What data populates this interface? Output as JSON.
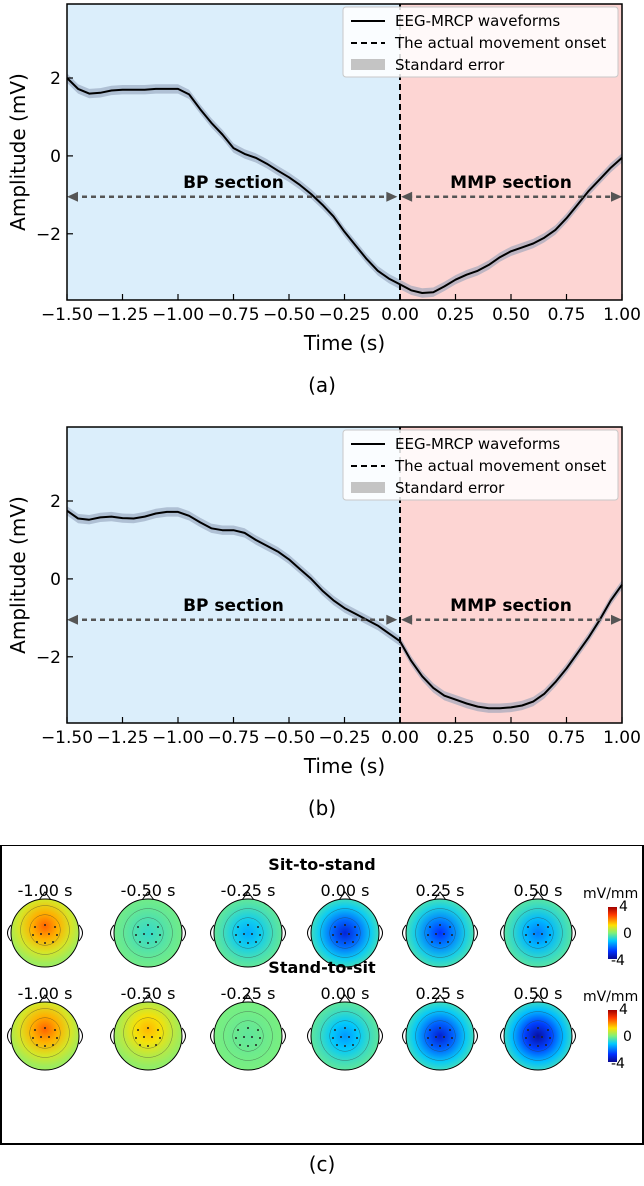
{
  "chart_data": [
    {
      "type": "line",
      "caption": "(a)",
      "xlabel": "Time (s)",
      "ylabel": "Amplitude (mV)",
      "xlim": [
        -1.5,
        1.0
      ],
      "ylim": [
        -3.7,
        3.9
      ],
      "xticks": [
        "−1.50",
        "−1.25",
        "−1.00",
        "−0.75",
        "−0.50",
        "−0.25",
        "0.00",
        "0.25",
        "0.50",
        "0.75",
        "1.00"
      ],
      "yticks": [
        "2",
        "0",
        "−2"
      ],
      "legend_position": "top-right",
      "legend": [
        "EEG-MRCP waveforms",
        "The actual movement onset",
        "Standard error"
      ],
      "onset_x": 0.0,
      "regions": [
        {
          "label": "BP section",
          "x": [
            -1.5,
            0.0
          ],
          "color": "#dbeefb"
        },
        {
          "label": "MMP section",
          "x": [
            0.0,
            1.0
          ],
          "color": "#fdd5d3"
        }
      ],
      "arrow_y": -1.05,
      "series": [
        {
          "name": "EEG-MRCP waveforms",
          "x": [
            -1.5,
            -1.45,
            -1.4,
            -1.35,
            -1.3,
            -1.25,
            -1.2,
            -1.15,
            -1.1,
            -1.05,
            -1.0,
            -0.95,
            -0.9,
            -0.85,
            -0.8,
            -0.75,
            -0.7,
            -0.65,
            -0.6,
            -0.55,
            -0.5,
            -0.45,
            -0.4,
            -0.35,
            -0.3,
            -0.25,
            -0.2,
            -0.15,
            -0.1,
            -0.05,
            0.0,
            0.05,
            0.1,
            0.15,
            0.2,
            0.25,
            0.3,
            0.35,
            0.4,
            0.45,
            0.5,
            0.55,
            0.6,
            0.65,
            0.7,
            0.75,
            0.8,
            0.85,
            0.9,
            0.95,
            1.0
          ],
          "y": [
            2.0,
            1.72,
            1.6,
            1.62,
            1.68,
            1.7,
            1.7,
            1.7,
            1.72,
            1.72,
            1.72,
            1.58,
            1.2,
            0.85,
            0.55,
            0.2,
            0.05,
            -0.05,
            -0.2,
            -0.38,
            -0.55,
            -0.75,
            -0.98,
            -1.25,
            -1.55,
            -1.95,
            -2.3,
            -2.65,
            -2.95,
            -3.15,
            -3.3,
            -3.45,
            -3.52,
            -3.5,
            -3.35,
            -3.18,
            -3.05,
            -2.95,
            -2.8,
            -2.6,
            -2.45,
            -2.35,
            -2.25,
            -2.1,
            -1.9,
            -1.6,
            -1.25,
            -0.9,
            -0.6,
            -0.3,
            -0.05
          ],
          "stderr": 0.12
        }
      ]
    },
    {
      "type": "line",
      "caption": "(b)",
      "xlabel": "Time (s)",
      "ylabel": "Amplitude (mV)",
      "xlim": [
        -1.5,
        1.0
      ],
      "ylim": [
        -3.7,
        3.9
      ],
      "xticks": [
        "−1.50",
        "−1.25",
        "−1.00",
        "−0.75",
        "−0.50",
        "−0.25",
        "0.00",
        "0.25",
        "0.50",
        "0.75",
        "1.00"
      ],
      "yticks": [
        "2",
        "0",
        "−2"
      ],
      "legend_position": "top-right",
      "legend": [
        "EEG-MRCP waveforms",
        "The actual movement onset",
        "Standard error"
      ],
      "onset_x": 0.0,
      "regions": [
        {
          "label": "BP section",
          "x": [
            -1.5,
            0.0
          ],
          "color": "#dbeefb"
        },
        {
          "label": "MMP section",
          "x": [
            0.0,
            1.0
          ],
          "color": "#fdd5d3"
        }
      ],
      "arrow_y": -1.05,
      "series": [
        {
          "name": "EEG-MRCP waveforms",
          "x": [
            -1.5,
            -1.45,
            -1.4,
            -1.35,
            -1.3,
            -1.25,
            -1.2,
            -1.15,
            -1.1,
            -1.05,
            -1.0,
            -0.95,
            -0.9,
            -0.85,
            -0.8,
            -0.75,
            -0.7,
            -0.65,
            -0.6,
            -0.55,
            -0.5,
            -0.45,
            -0.4,
            -0.35,
            -0.3,
            -0.25,
            -0.2,
            -0.15,
            -0.1,
            -0.05,
            0.0,
            0.05,
            0.1,
            0.15,
            0.2,
            0.25,
            0.3,
            0.35,
            0.4,
            0.45,
            0.5,
            0.55,
            0.6,
            0.65,
            0.7,
            0.75,
            0.8,
            0.85,
            0.9,
            0.95,
            1.0
          ],
          "y": [
            1.75,
            1.55,
            1.52,
            1.58,
            1.6,
            1.56,
            1.55,
            1.6,
            1.68,
            1.72,
            1.72,
            1.62,
            1.45,
            1.3,
            1.25,
            1.25,
            1.18,
            1.0,
            0.85,
            0.7,
            0.5,
            0.25,
            0.0,
            -0.3,
            -0.55,
            -0.75,
            -0.9,
            -1.05,
            -1.2,
            -1.4,
            -1.6,
            -2.1,
            -2.5,
            -2.8,
            -3.0,
            -3.1,
            -3.2,
            -3.28,
            -3.32,
            -3.32,
            -3.3,
            -3.25,
            -3.15,
            -2.95,
            -2.65,
            -2.3,
            -1.9,
            -1.5,
            -1.05,
            -0.55,
            -0.15
          ],
          "stderr": 0.12
        }
      ]
    }
  ],
  "topomaps": {
    "caption": "(c)",
    "colorbar": {
      "unit": "mV/mm",
      "max_label": "4",
      "mid_label": "0",
      "min_label": "-4",
      "min": -4,
      "max": 4
    },
    "rows": [
      {
        "title": "Sit-to-stand",
        "maps": [
          {
            "time": "-1.00 s",
            "value": 2.4
          },
          {
            "time": "-0.50 s",
            "value": -0.7
          },
          {
            "time": "-0.25 s",
            "value": -1.5
          },
          {
            "time": "0.00 s",
            "value": -3.2
          },
          {
            "time": "0.25 s",
            "value": -2.8
          },
          {
            "time": "0.50 s",
            "value": -2.0
          }
        ]
      },
      {
        "title": "Stand-to-sit",
        "maps": [
          {
            "time": "-1.00 s",
            "value": 2.4
          },
          {
            "time": "-0.50 s",
            "value": 1.6
          },
          {
            "time": "-0.25 s",
            "value": -0.3
          },
          {
            "time": "0.00 s",
            "value": -1.7
          },
          {
            "time": "0.25 s",
            "value": -3.3
          },
          {
            "time": "0.50 s",
            "value": -3.8
          }
        ]
      }
    ]
  }
}
